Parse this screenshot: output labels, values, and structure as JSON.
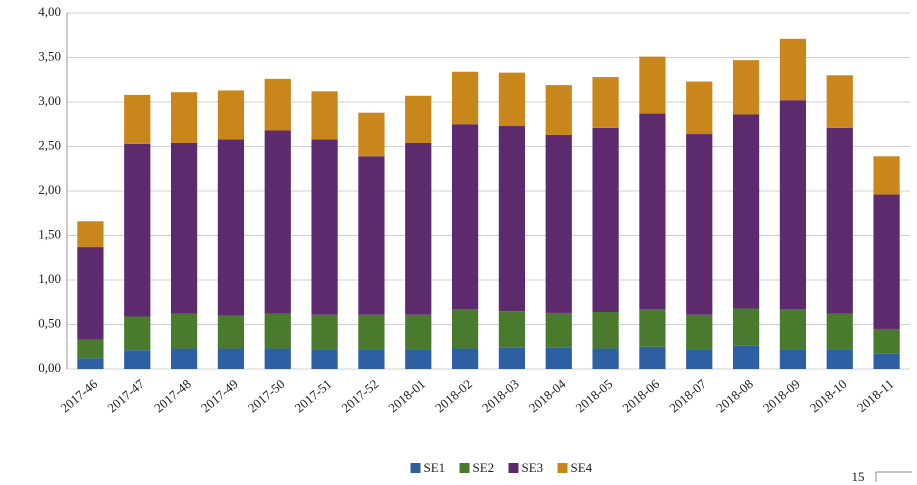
{
  "chart_data": {
    "type": "bar",
    "stacked": true,
    "categories": [
      "2017-46",
      "2017-47",
      "2017-48",
      "2017-49",
      "2017-50",
      "2017-51",
      "2017-52",
      "2018-01",
      "2018-02",
      "2018-03",
      "2018-04",
      "2018-05",
      "2018-06",
      "2018-07",
      "2018-08",
      "2018-09",
      "2018-10",
      "2018-11"
    ],
    "series": [
      {
        "name": "SE1",
        "color": "#2e5fa3",
        "values": [
          0.12,
          0.21,
          0.23,
          0.23,
          0.23,
          0.22,
          0.22,
          0.22,
          0.23,
          0.24,
          0.24,
          0.23,
          0.25,
          0.22,
          0.26,
          0.22,
          0.22,
          0.17
        ]
      },
      {
        "name": "SE2",
        "color": "#4a7a2e",
        "values": [
          0.21,
          0.38,
          0.39,
          0.37,
          0.39,
          0.39,
          0.39,
          0.39,
          0.44,
          0.41,
          0.39,
          0.41,
          0.42,
          0.39,
          0.42,
          0.45,
          0.4,
          0.28
        ]
      },
      {
        "name": "SE3",
        "color": "#5e2a6e",
        "values": [
          1.04,
          1.94,
          1.92,
          1.98,
          2.06,
          1.97,
          1.78,
          1.93,
          2.08,
          2.08,
          2.0,
          2.07,
          2.2,
          2.03,
          2.18,
          2.35,
          2.09,
          1.51
        ]
      },
      {
        "name": "SE4",
        "color": "#c9861a",
        "values": [
          0.29,
          0.55,
          0.57,
          0.55,
          0.58,
          0.54,
          0.49,
          0.53,
          0.59,
          0.6,
          0.56,
          0.57,
          0.64,
          0.59,
          0.61,
          0.69,
          0.59,
          0.43
        ]
      }
    ],
    "ylim": [
      0,
      4
    ],
    "yticks": [
      {
        "value": 0,
        "label": "0,00"
      },
      {
        "value": 0.5,
        "label": "0,50"
      },
      {
        "value": 1,
        "label": "1,00"
      },
      {
        "value": 1.5,
        "label": "1,50"
      },
      {
        "value": 2,
        "label": "2,00"
      },
      {
        "value": 2.5,
        "label": "2,50"
      },
      {
        "value": 3,
        "label": "3,00"
      },
      {
        "value": 3.5,
        "label": "3,50"
      },
      {
        "value": 4,
        "label": "4,00"
      }
    ],
    "grid": true,
    "legend": "bottom",
    "page_number": "15"
  }
}
